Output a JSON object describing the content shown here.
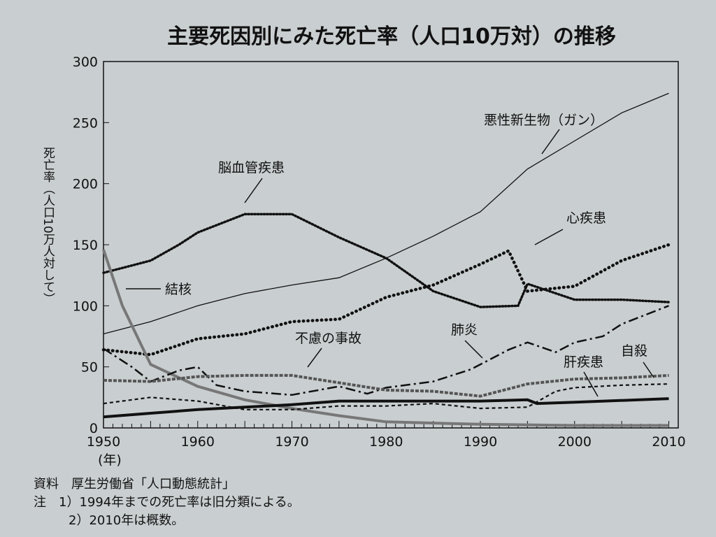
{
  "chart_data": {
    "type": "line",
    "title": "主要死因別にみた死亡率（人口10万対）の推移",
    "ylabel": "死亡率（人口10万人対して）",
    "xunit": "(年)",
    "xlim": [
      1950,
      2011
    ],
    "ylim": [
      0,
      300
    ],
    "xticks": [
      "1950",
      "1960",
      "1970",
      "1980",
      "1990",
      "2000",
      "2010"
    ],
    "yticks": [
      "0",
      "50",
      "100",
      "150",
      "200",
      "250",
      "300"
    ],
    "grid": false,
    "series": [
      {
        "name": "悪性新生物（ガン）",
        "style": "solid-thin",
        "x": [
          1950,
          1955,
          1960,
          1965,
          1970,
          1975,
          1980,
          1985,
          1990,
          1995,
          2000,
          2005,
          2010
        ],
        "y": [
          77,
          87,
          100,
          110,
          117,
          123,
          139,
          157,
          177,
          212,
          235,
          258,
          274
        ]
      },
      {
        "name": "脳血管疾患",
        "style": "dotted",
        "x": [
          1950,
          1955,
          1958,
          1960,
          1965,
          1970,
          1975,
          1980,
          1985,
          1990,
          1994,
          1995,
          2000,
          2005,
          2010
        ],
        "y": [
          127,
          137,
          150,
          160,
          175,
          175,
          156,
          139,
          112,
          99,
          100,
          118,
          105,
          105,
          103
        ]
      },
      {
        "name": "心疾患",
        "style": "dotted-bold",
        "x": [
          1950,
          1955,
          1960,
          1965,
          1970,
          1975,
          1980,
          1985,
          1990,
          1993,
          1995,
          2000,
          2005,
          2010
        ],
        "y": [
          64,
          60,
          73,
          77,
          87,
          89,
          107,
          117,
          134,
          145,
          112,
          116,
          137,
          150
        ]
      },
      {
        "name": "結核",
        "style": "double",
        "x": [
          1950,
          1952,
          1955,
          1960,
          1965,
          1970,
          1975,
          1980,
          1990,
          2000,
          2010
        ],
        "y": [
          146,
          100,
          52,
          34,
          23,
          16,
          10,
          5,
          3,
          2,
          2
        ]
      },
      {
        "name": "肺炎",
        "style": "dash-dot",
        "x": [
          1950,
          1953,
          1955,
          1958,
          1960,
          1962,
          1965,
          1970,
          1975,
          1978,
          1980,
          1985,
          1989,
          1993,
          1995,
          1998,
          2000,
          2003,
          2005,
          2010
        ],
        "y": [
          65,
          50,
          38,
          47,
          50,
          35,
          30,
          27,
          34,
          28,
          33,
          38,
          48,
          64,
          70,
          62,
          70,
          75,
          85,
          100
        ]
      },
      {
        "name": "不慮の事故",
        "style": "dashed-textured",
        "x": [
          1950,
          1955,
          1960,
          1965,
          1970,
          1975,
          1980,
          1985,
          1990,
          1995,
          2000,
          2005,
          2010
        ],
        "y": [
          39,
          38,
          42,
          43,
          43,
          37,
          31,
          30,
          26,
          36,
          40,
          41,
          43
        ]
      },
      {
        "name": "自殺",
        "style": "dashed",
        "x": [
          1950,
          1955,
          1960,
          1965,
          1970,
          1975,
          1980,
          1985,
          1990,
          1995,
          1998,
          2000,
          2005,
          2010
        ],
        "y": [
          20,
          25,
          22,
          15,
          15,
          18,
          18,
          20,
          16,
          17,
          30,
          33,
          35,
          36
        ]
      },
      {
        "name": "肝疾患",
        "style": "solid-bold",
        "x": [
          1950,
          1955,
          1960,
          1965,
          1970,
          1975,
          1980,
          1985,
          1990,
          1995,
          1996,
          2000,
          2010
        ],
        "y": [
          9,
          12,
          15,
          17,
          19,
          22,
          22,
          22,
          22,
          23,
          20,
          21,
          24
        ]
      }
    ]
  },
  "source": "資料　厚生労働省「人口動態統計」",
  "notes": [
    "注　1）1994年までの死亡率は旧分類による。",
    "2）2010年は概数。"
  ],
  "colors": {
    "paper": "#c9ced0",
    "ink": "#111111"
  }
}
